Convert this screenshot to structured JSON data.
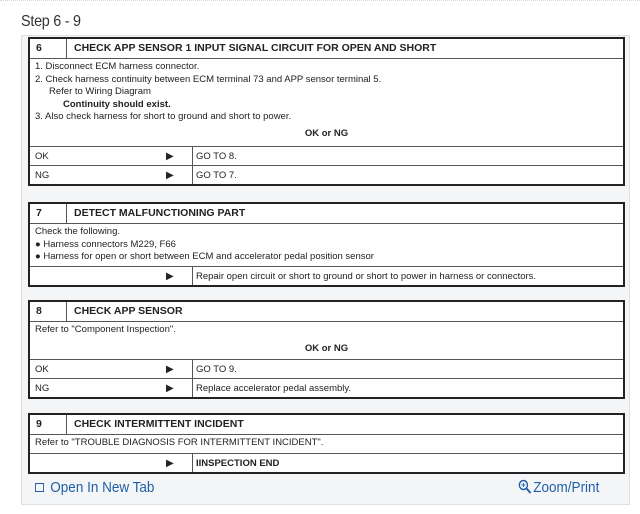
{
  "page": {
    "title": "Step 6 - 9"
  },
  "steps": [
    {
      "num": "6",
      "title": "CHECK APP SENSOR 1 INPUT SIGNAL CIRCUIT FOR OPEN AND SHORT",
      "lines": [
        "1.  Disconnect ECM harness connector.",
        "2.  Check harness continuity between ECM terminal 73 and APP sensor terminal 5.",
        "Refer to Wiring Diagram",
        "Continuity should exist.",
        "3.  Also check harness for short to ground and short to power."
      ],
      "prompt": "OK or NG",
      "results": [
        {
          "label": "OK",
          "action": "GO TO 8."
        },
        {
          "label": "NG",
          "action": "GO TO 7."
        }
      ]
    },
    {
      "num": "7",
      "title": "DETECT MALFUNCTIONING PART",
      "lines": [
        "Check the following.",
        "●  Harness connectors M229, F66",
        "●  Harness for open or short between ECM and accelerator pedal position sensor"
      ],
      "results": [
        {
          "label": "",
          "action": "Repair open circuit or short to ground or short to power in harness or connectors."
        }
      ]
    },
    {
      "num": "8",
      "title": "CHECK APP SENSOR",
      "lines": [
        "Refer to \"Component Inspection\"."
      ],
      "prompt": "OK or NG",
      "results": [
        {
          "label": "OK",
          "action": "GO TO 9."
        },
        {
          "label": "NG",
          "action": "Replace accelerator pedal assembly."
        }
      ]
    },
    {
      "num": "9",
      "title": "CHECK INTERMITTENT INCIDENT",
      "lines": [
        "Refer to \"TROUBLE DIAGNOSIS FOR INTERMITTENT INCIDENT\"."
      ],
      "results": [
        {
          "label": "",
          "action": "IINSPECTION END"
        }
      ]
    }
  ],
  "arrow": "▶",
  "footer": {
    "open_tab": "Open In New Tab",
    "zoom_print": "Zoom/Print",
    "open_tab_icon": "open-new-tab-icon",
    "zoom_icon": "magnifier-plus-icon",
    "link_color": "#1f5fa8"
  }
}
